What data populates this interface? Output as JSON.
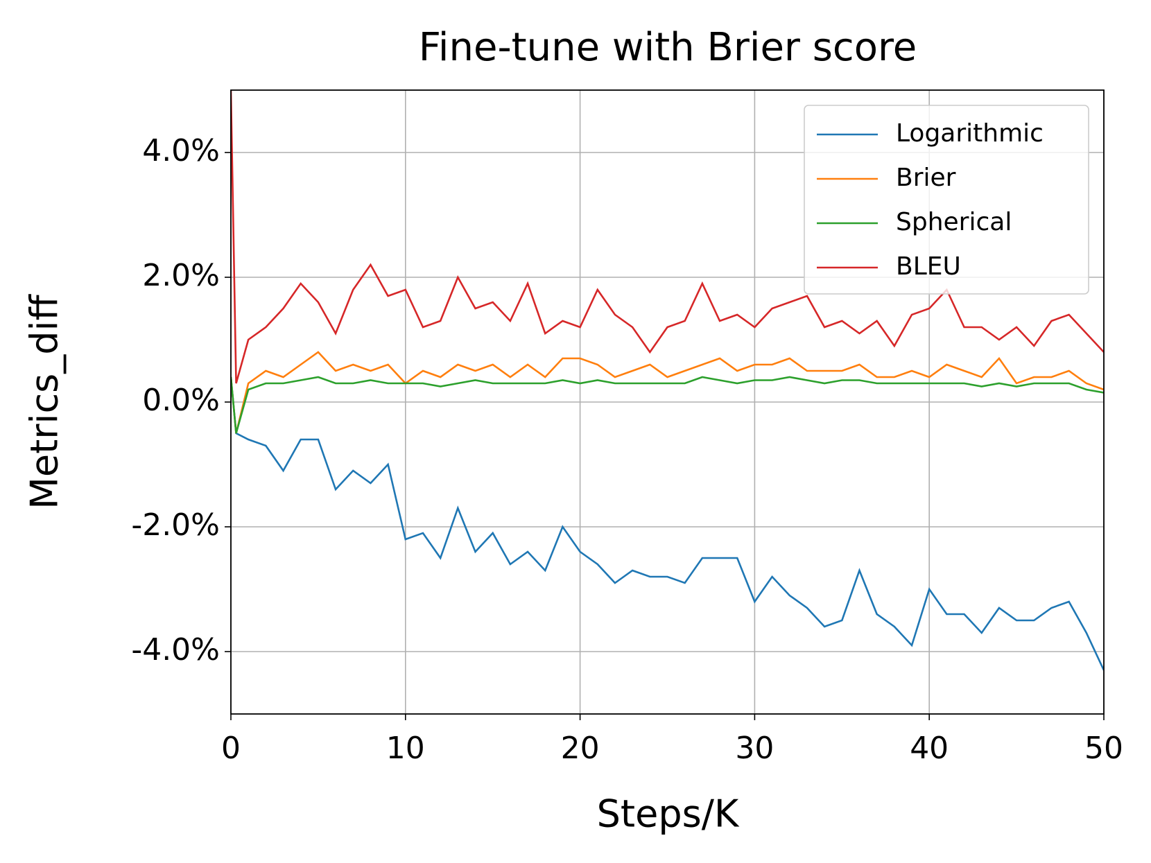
{
  "chart_data": {
    "type": "line",
    "title": "Fine-tune with Brier score",
    "xlabel": "Steps/K",
    "ylabel": "Metrics_diff",
    "x": [
      0,
      0.3,
      1,
      2,
      3,
      4,
      5,
      6,
      7,
      8,
      9,
      10,
      11,
      12,
      13,
      14,
      15,
      16,
      17,
      18,
      19,
      20,
      21,
      22,
      23,
      24,
      25,
      26,
      27,
      28,
      29,
      30,
      31,
      32,
      33,
      34,
      35,
      36,
      37,
      38,
      39,
      40,
      41,
      42,
      43,
      44,
      45,
      46,
      47,
      48,
      49,
      50
    ],
    "series": [
      {
        "name": "Logarithmic",
        "color": "#1f77b4",
        "values": [
          0.4,
          -0.5,
          -0.6,
          -0.7,
          -1.1,
          -0.6,
          -0.6,
          -1.4,
          -1.1,
          -1.3,
          -1.0,
          -2.2,
          -2.1,
          -2.5,
          -1.7,
          -2.4,
          -2.1,
          -2.6,
          -2.4,
          -2.7,
          -2.0,
          -2.4,
          -2.6,
          -2.9,
          -2.7,
          -2.8,
          -2.8,
          -2.9,
          -2.5,
          -2.5,
          -2.5,
          -3.2,
          -2.8,
          -3.1,
          -3.3,
          -3.6,
          -3.5,
          -2.7,
          -3.4,
          -3.6,
          -3.9,
          -3.0,
          -3.4,
          -3.4,
          -3.7,
          -3.3,
          -3.5,
          -3.5,
          -3.3,
          -3.2,
          -3.7,
          -4.3
        ]
      },
      {
        "name": "Brier",
        "color": "#ff7f0e",
        "values": [
          0.4,
          -0.5,
          0.3,
          0.5,
          0.4,
          0.6,
          0.8,
          0.5,
          0.6,
          0.5,
          0.6,
          0.3,
          0.5,
          0.4,
          0.6,
          0.5,
          0.6,
          0.4,
          0.6,
          0.4,
          0.7,
          0.7,
          0.6,
          0.4,
          0.5,
          0.6,
          0.4,
          0.5,
          0.6,
          0.7,
          0.5,
          0.6,
          0.6,
          0.7,
          0.5,
          0.5,
          0.5,
          0.6,
          0.4,
          0.4,
          0.5,
          0.4,
          0.6,
          0.5,
          0.4,
          0.7,
          0.3,
          0.4,
          0.4,
          0.5,
          0.3,
          0.2
        ]
      },
      {
        "name": "Spherical",
        "color": "#2ca02c",
        "values": [
          0.4,
          -0.5,
          0.2,
          0.3,
          0.3,
          0.35,
          0.4,
          0.3,
          0.3,
          0.35,
          0.3,
          0.3,
          0.3,
          0.25,
          0.3,
          0.35,
          0.3,
          0.3,
          0.3,
          0.3,
          0.35,
          0.3,
          0.35,
          0.3,
          0.3,
          0.3,
          0.3,
          0.3,
          0.4,
          0.35,
          0.3,
          0.35,
          0.35,
          0.4,
          0.35,
          0.3,
          0.35,
          0.35,
          0.3,
          0.3,
          0.3,
          0.3,
          0.3,
          0.3,
          0.25,
          0.3,
          0.25,
          0.3,
          0.3,
          0.3,
          0.2,
          0.15
        ]
      },
      {
        "name": "BLEU",
        "color": "#d62728",
        "values": [
          5.0,
          0.3,
          1.0,
          1.2,
          1.5,
          1.9,
          1.6,
          1.1,
          1.8,
          2.2,
          1.7,
          1.8,
          1.2,
          1.3,
          2.0,
          1.5,
          1.6,
          1.3,
          1.9,
          1.1,
          1.3,
          1.2,
          1.8,
          1.4,
          1.2,
          0.8,
          1.2,
          1.3,
          1.9,
          1.3,
          1.4,
          1.2,
          1.5,
          1.6,
          1.7,
          1.2,
          1.3,
          1.1,
          1.3,
          0.9,
          1.4,
          1.5,
          1.8,
          1.2,
          1.2,
          1.0,
          1.2,
          0.9,
          1.3,
          1.4,
          1.1,
          0.8
        ]
      }
    ],
    "xlim": [
      0,
      50
    ],
    "xticks": [
      0,
      10,
      20,
      30,
      40,
      50
    ],
    "ylim": [
      -5,
      5
    ],
    "yticks": [
      {
        "value": -4,
        "label": "-4.0%"
      },
      {
        "value": -2,
        "label": "-2.0%"
      },
      {
        "value": 0,
        "label": "0.0%"
      },
      {
        "value": 2,
        "label": "2.0%"
      },
      {
        "value": 4,
        "label": "4.0%"
      }
    ],
    "grid": true,
    "legend": "upper right"
  }
}
